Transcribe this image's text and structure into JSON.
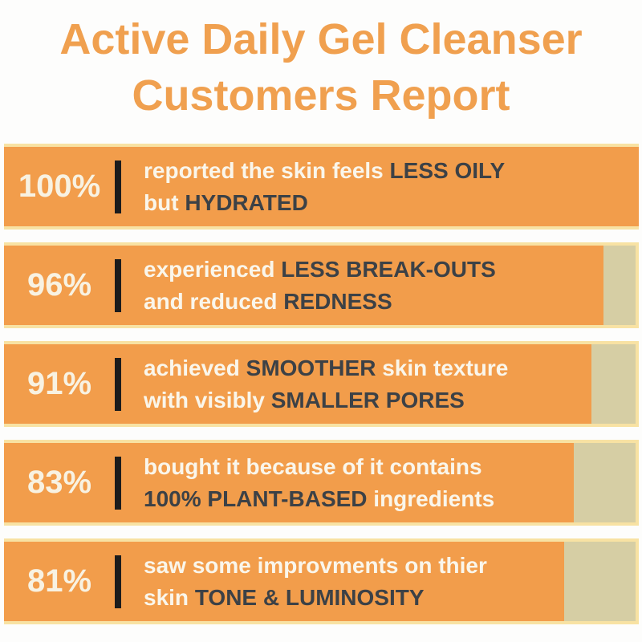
{
  "title": {
    "line1": "Active Daily Gel Cleanser",
    "line2": "Customers Report"
  },
  "colors": {
    "title_orange": "#f0a04f",
    "bar_orange": "#f29d4b",
    "track_khaki": "#d6cea4",
    "track_border_cream": "#f8e2a3",
    "text_light": "#faf6eb",
    "text_dark": "#3c4146",
    "divider_black": "#1c1c1c",
    "background": "#fdfdfc"
  },
  "bars": [
    {
      "percent": "100%",
      "value": 100,
      "fill_pct": 100,
      "lines": [
        [
          {
            "text": "reported the skin feels ",
            "em": false
          },
          {
            "text": "LESS OILY",
            "em": true
          }
        ],
        [
          {
            "text": "but ",
            "em": false
          },
          {
            "text": "HYDRATED",
            "em": true
          }
        ]
      ]
    },
    {
      "percent": "96%",
      "value": 96,
      "fill_pct": 94.4,
      "lines": [
        [
          {
            "text": "experienced  ",
            "em": false
          },
          {
            "text": "LESS BREAK-OUTS",
            "em": true
          }
        ],
        [
          {
            "text": "and reduced ",
            "em": false
          },
          {
            "text": "REDNESS",
            "em": true
          }
        ]
      ]
    },
    {
      "percent": "91%",
      "value": 91,
      "fill_pct": 92.5,
      "lines": [
        [
          {
            "text": "achieved ",
            "em": false
          },
          {
            "text": "SMOOTHER",
            "em": true
          },
          {
            "text": " skin texture",
            "em": false
          }
        ],
        [
          {
            "text": "with visibly  ",
            "em": false
          },
          {
            "text": "SMALLER PORES",
            "em": true
          }
        ]
      ]
    },
    {
      "percent": "83%",
      "value": 83,
      "fill_pct": 89.8,
      "lines": [
        [
          {
            "text": "bought it because of it contains",
            "em": false
          }
        ],
        [
          {
            "text": "100% PLANT-BASED",
            "em": true
          },
          {
            "text": " ingredients",
            "em": false
          }
        ]
      ]
    },
    {
      "percent": "81%",
      "value": 81,
      "fill_pct": 88.3,
      "lines": [
        [
          {
            "text": "saw some improvments on thier",
            "em": false
          }
        ],
        [
          {
            "text": "skin ",
            "em": false
          },
          {
            "text": "TONE & LUMINOSITY",
            "em": true
          }
        ]
      ]
    }
  ],
  "chart_data": {
    "type": "bar",
    "orientation": "horizontal",
    "title": "Active Daily Gel Cleanser Customers Report",
    "categories": [
      "reported the skin feels LESS OILY but HYDRATED",
      "experienced LESS BREAK-OUTS and reduced REDNESS",
      "achieved SMOOTHER skin texture with visibly SMALLER PORES",
      "bought it because of it contains 100% PLANT-BASED ingredients",
      "saw some improvments on thier skin TONE & LUMINOSITY"
    ],
    "values": [
      100,
      96,
      91,
      83,
      81
    ],
    "bar_labels": [
      "100%",
      "96%",
      "91%",
      "83%",
      "81%"
    ],
    "unit": "%",
    "xlim": [
      0,
      100
    ],
    "rendered_fill_percent": [
      100,
      94.4,
      92.5,
      89.8,
      88.3
    ],
    "legend": false,
    "grid": false,
    "notes": "Static infographic; bar track is khaki with cream border, fill is orange"
  }
}
